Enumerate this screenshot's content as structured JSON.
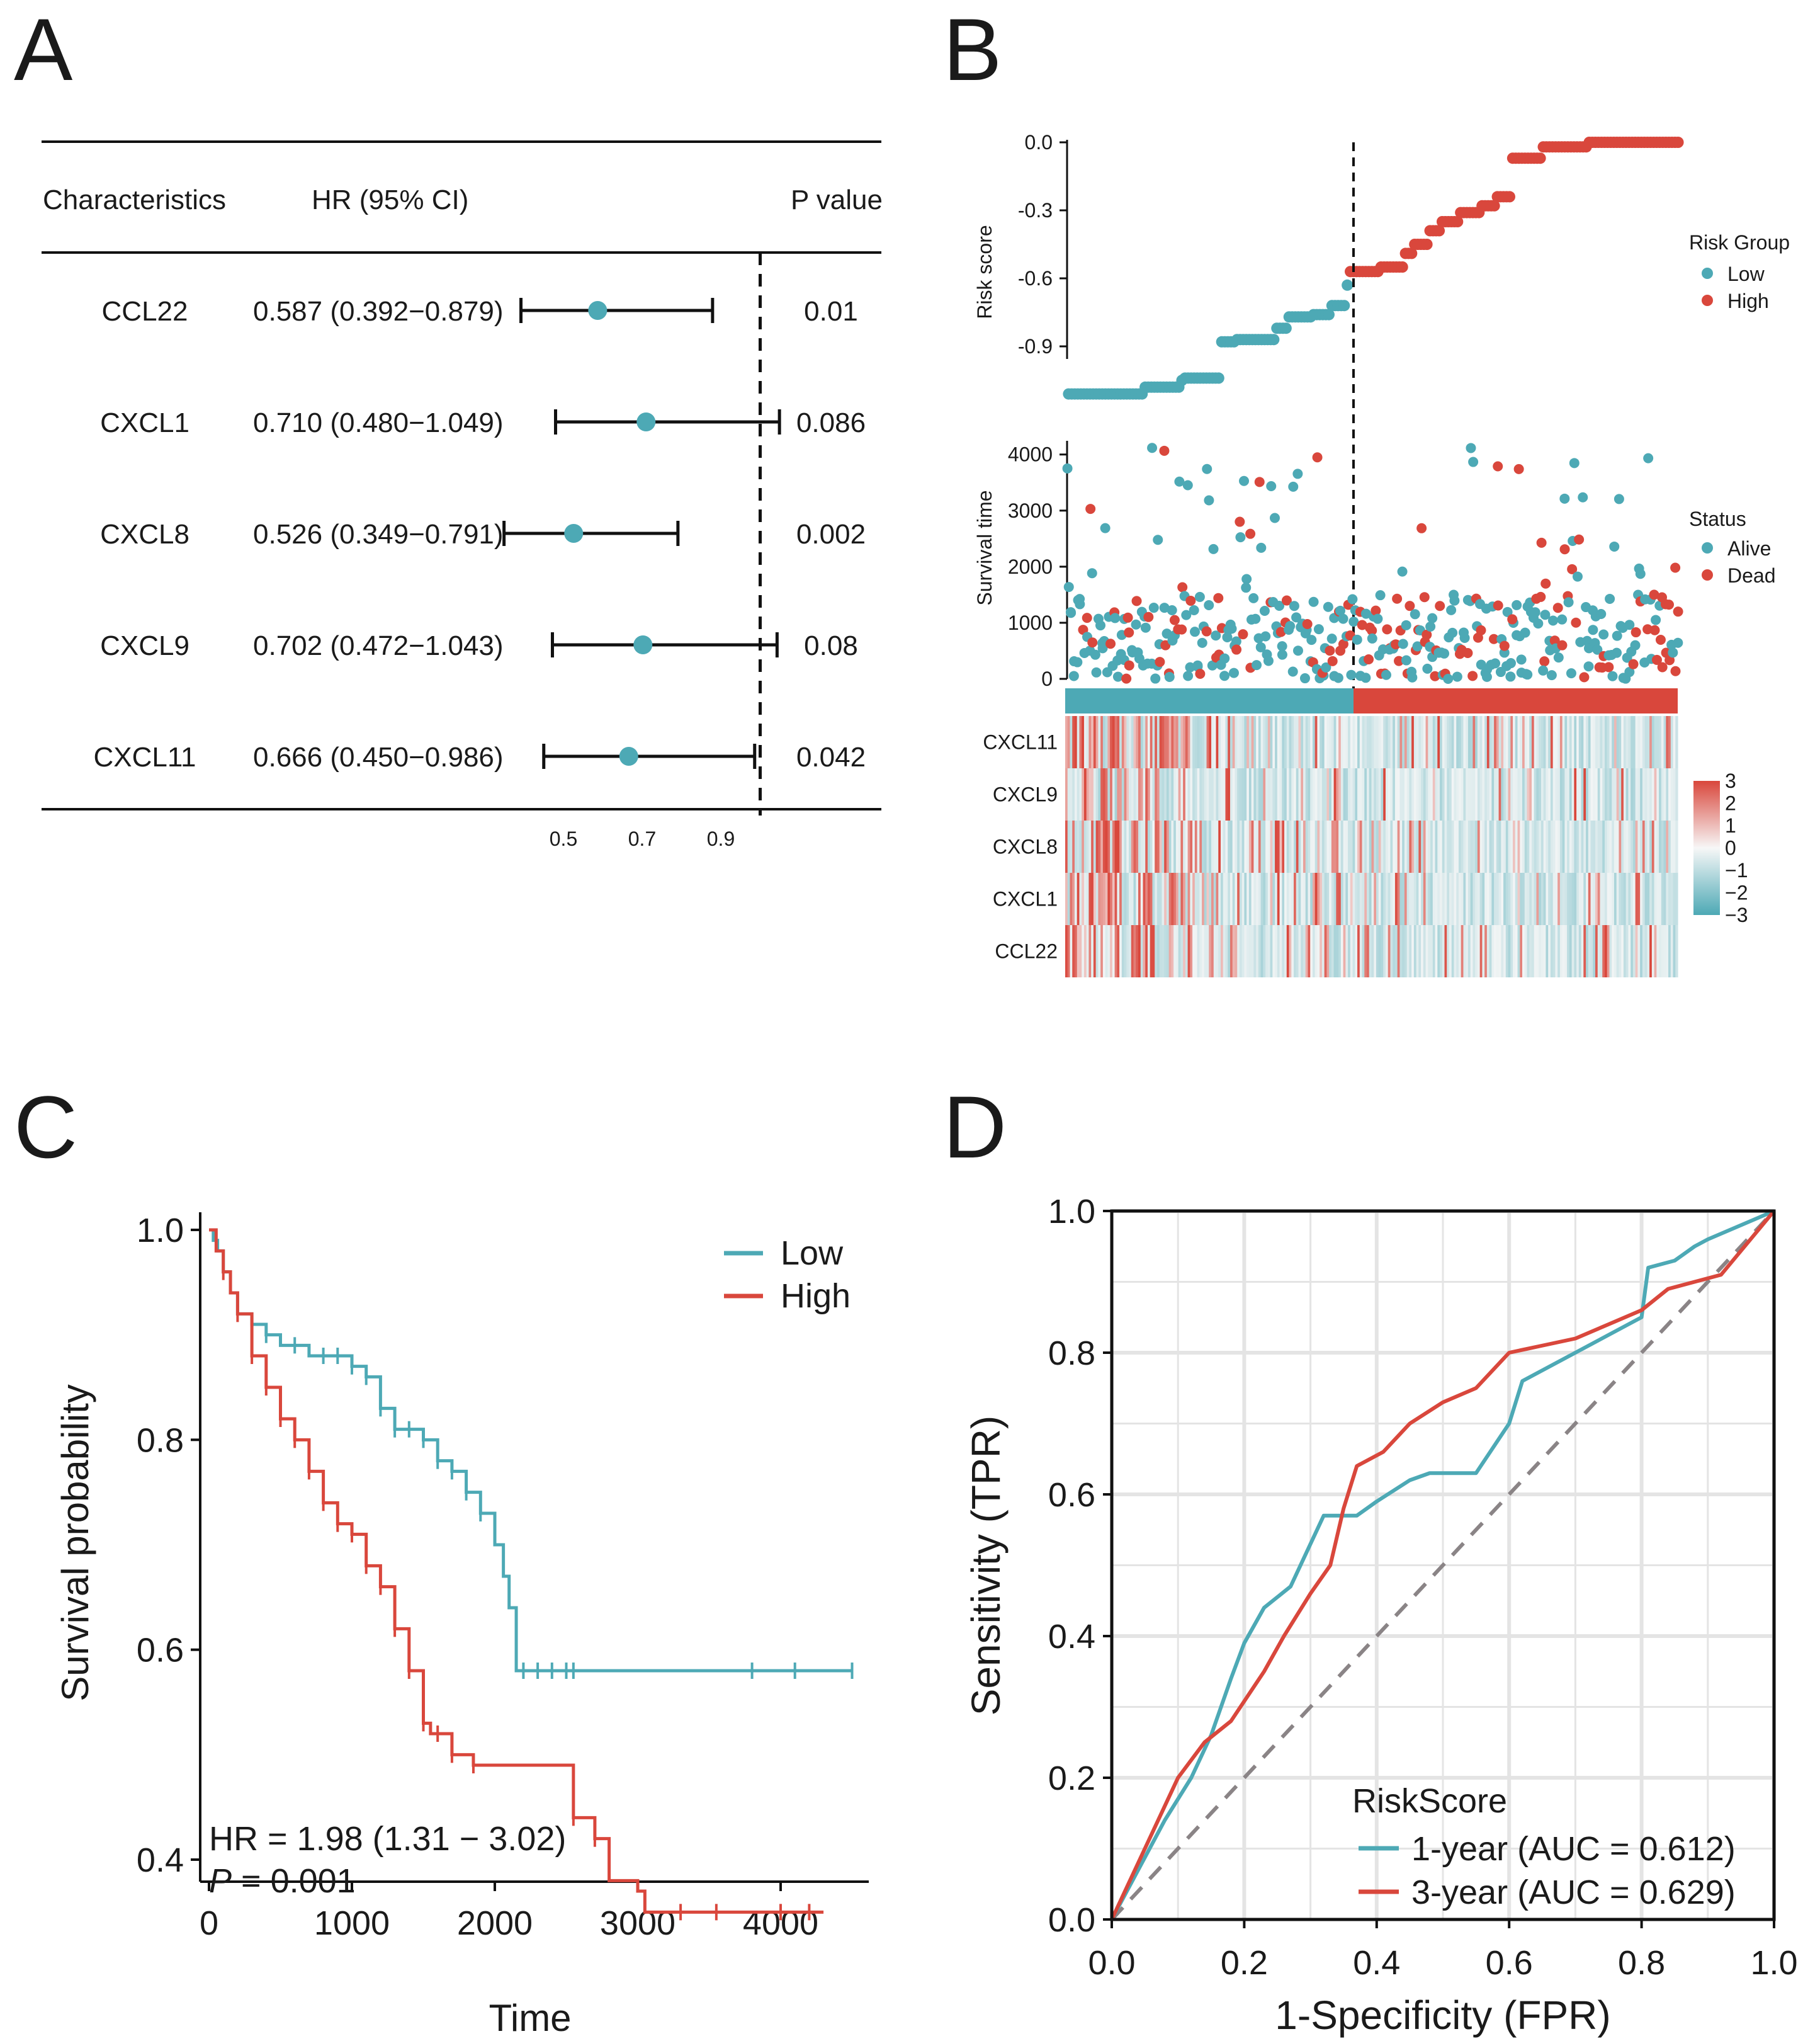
{
  "panels": {
    "a": "A",
    "b": "B",
    "c": "C",
    "d": "D"
  },
  "chart_data": [
    {
      "panel": "A",
      "type": "table",
      "subtype": "forest_plot",
      "headers": {
        "characteristics": "Characteristics",
        "hr": "HR (95% CI)",
        "p": "P value"
      },
      "rows": [
        {
          "name": "CCL22",
          "hr_text": "0.587 (0.392−0.879)",
          "hr": 0.587,
          "lo": 0.392,
          "hi": 0.879,
          "p": "0.01"
        },
        {
          "name": "CXCL1",
          "hr_text": "0.710 (0.480−1.049)",
          "hr": 0.71,
          "lo": 0.48,
          "hi": 1.049,
          "p": "0.086"
        },
        {
          "name": "CXCL8",
          "hr_text": "0.526 (0.349−0.791)",
          "hr": 0.526,
          "lo": 0.349,
          "hi": 0.791,
          "p": "0.002"
        },
        {
          "name": "CXCL9",
          "hr_text": "0.702 (0.472−1.043)",
          "hr": 0.702,
          "lo": 0.472,
          "hi": 1.043,
          "p": "0.08"
        },
        {
          "name": "CXCL11",
          "hr_text": "0.666 (0.450−0.986)",
          "hr": 0.666,
          "lo": 0.45,
          "hi": 0.986,
          "p": "0.042"
        }
      ],
      "axis_ticks": [
        "0.5",
        "0.7",
        "0.9"
      ],
      "tick_values": [
        0.5,
        0.7,
        0.9
      ],
      "xlim": [
        0.3,
        1.1
      ],
      "reference_line": 1.0
    },
    {
      "panel": "B",
      "type": "scatter",
      "subtype": "risk_score_plot",
      "risk": {
        "ylabel": "Risk score",
        "yticks": [
          "0.0",
          "-0.3",
          "-0.6",
          "-0.9"
        ],
        "tick_values": [
          0.0,
          -0.3,
          -0.6,
          -0.9
        ],
        "ylim": [
          -1.15,
          0.0
        ],
        "n_patients": 200,
        "n_low": 92,
        "steps": [
          {
            "from": 0,
            "to": 25,
            "score": -1.11
          },
          {
            "from": 25,
            "to": 37,
            "score": -1.08
          },
          {
            "from": 37,
            "to": 38,
            "score": -1.05
          },
          {
            "from": 38,
            "to": 50,
            "score": -1.04
          },
          {
            "from": 50,
            "to": 55,
            "score": -0.88
          },
          {
            "from": 55,
            "to": 68,
            "score": -0.87
          },
          {
            "from": 68,
            "to": 72,
            "score": -0.82
          },
          {
            "from": 72,
            "to": 80,
            "score": -0.77
          },
          {
            "from": 80,
            "to": 86,
            "score": -0.76
          },
          {
            "from": 86,
            "to": 91,
            "score": -0.72
          },
          {
            "from": 91,
            "to": 92,
            "score": -0.63
          },
          {
            "from": 92,
            "to": 102,
            "score": -0.57
          },
          {
            "from": 102,
            "to": 110,
            "score": -0.55
          },
          {
            "from": 110,
            "to": 113,
            "score": -0.49
          },
          {
            "from": 113,
            "to": 118,
            "score": -0.45
          },
          {
            "from": 118,
            "to": 122,
            "score": -0.39
          },
          {
            "from": 122,
            "to": 128,
            "score": -0.35
          },
          {
            "from": 128,
            "to": 135,
            "score": -0.31
          },
          {
            "from": 135,
            "to": 140,
            "score": -0.28
          },
          {
            "from": 140,
            "to": 145,
            "score": -0.24
          },
          {
            "from": 145,
            "to": 155,
            "score": -0.07
          },
          {
            "from": 155,
            "to": 170,
            "score": -0.02
          },
          {
            "from": 170,
            "to": 200,
            "score": 0.0
          }
        ],
        "legend_title": "Risk Group",
        "groups": [
          "Low",
          "High"
        ]
      },
      "survival": {
        "ylabel": "Survival time",
        "yticks": [
          "4000",
          "3000",
          "2000",
          "1000",
          "0"
        ],
        "tick_values": [
          4000,
          3000,
          2000,
          1000,
          0
        ],
        "ylim": [
          0,
          4300
        ],
        "legend_title": "Status",
        "statuses": [
          "Alive",
          "Dead"
        ]
      },
      "heatmap": {
        "genes": [
          "CXCL11",
          "CXCL9",
          "CXCL8",
          "CXCL1",
          "CCL22"
        ],
        "colorbar_ticks": [
          "3",
          "2",
          "1",
          "0",
          "−1",
          "−2",
          "−3"
        ],
        "colorbar_values": [
          3,
          2,
          1,
          0,
          -1,
          -2,
          -3
        ]
      }
    },
    {
      "panel": "C",
      "type": "line",
      "subtype": "kaplan_meier",
      "xlabel": "Time",
      "ylabel": "Survival probability",
      "xticks": [
        "0",
        "1000",
        "2000",
        "3000",
        "4000"
      ],
      "x_tick_values": [
        0,
        1000,
        2000,
        3000,
        4000
      ],
      "yticks": [
        "1.0",
        "0.8",
        "0.6",
        "0.4"
      ],
      "y_tick_values": [
        1.0,
        0.8,
        0.6,
        0.4
      ],
      "xlim": [
        -50,
        4600
      ],
      "ylim": [
        0.35,
        1.02
      ],
      "legend": [
        "Low",
        "High"
      ],
      "series": [
        {
          "name": "Low",
          "x": [
            0,
            30,
            60,
            100,
            150,
            200,
            300,
            400,
            500,
            700,
            900,
            1000,
            1100,
            1200,
            1300,
            1400,
            1500,
            1600,
            1700,
            1800,
            1900,
            2000,
            2060,
            2100,
            2150,
            2500,
            3500,
            4500
          ],
          "y": [
            1.0,
            0.99,
            0.98,
            0.96,
            0.94,
            0.92,
            0.91,
            0.9,
            0.89,
            0.88,
            0.88,
            0.87,
            0.86,
            0.83,
            0.81,
            0.81,
            0.8,
            0.78,
            0.77,
            0.75,
            0.73,
            0.7,
            0.67,
            0.64,
            0.58,
            0.58,
            0.58,
            0.58
          ],
          "censor_x": [
            400,
            600,
            800,
            900,
            1000,
            1100,
            1200,
            1300,
            1400,
            1500,
            1600,
            1700,
            1800,
            1900,
            2200,
            2300,
            2400,
            2500,
            2550,
            3800,
            4100,
            4500
          ],
          "color": "#4da9b5"
        },
        {
          "name": "High",
          "x": [
            0,
            50,
            100,
            150,
            200,
            300,
            400,
            500,
            600,
            700,
            800,
            900,
            1000,
            1100,
            1200,
            1300,
            1400,
            1500,
            1550,
            1700,
            1850,
            2500,
            2550,
            2700,
            2800,
            3000,
            3050,
            3500,
            4300
          ],
          "y": [
            1.0,
            0.98,
            0.96,
            0.94,
            0.92,
            0.88,
            0.85,
            0.82,
            0.8,
            0.77,
            0.74,
            0.72,
            0.71,
            0.68,
            0.66,
            0.62,
            0.58,
            0.53,
            0.52,
            0.5,
            0.49,
            0.49,
            0.44,
            0.42,
            0.38,
            0.37,
            0.35,
            0.35,
            0.35
          ],
          "censor_x": [
            100,
            200,
            300,
            400,
            500,
            600,
            700,
            800,
            900,
            1000,
            1100,
            1200,
            1300,
            1400,
            1500,
            1600,
            1700,
            1850,
            2550,
            2700,
            3300,
            3550,
            4000,
            4200
          ],
          "color": "#d9473c"
        }
      ],
      "annotations": {
        "hr": "HR = 1.98 (1.31 − 3.02)",
        "p_label": "P",
        "p_value": " = 0.001"
      }
    },
    {
      "panel": "D",
      "type": "line",
      "subtype": "roc",
      "xlabel": "1-Specificity (FPR)",
      "ylabel": "Sensitivity (TPR)",
      "xticks": [
        "0.0",
        "0.2",
        "0.4",
        "0.6",
        "0.8",
        "1.0"
      ],
      "yticks": [
        "0.0",
        "0.2",
        "0.4",
        "0.6",
        "0.8",
        "1.0"
      ],
      "tick_values": [
        0.0,
        0.2,
        0.4,
        0.6,
        0.8,
        1.0
      ],
      "xlim": [
        0,
        1
      ],
      "ylim": [
        0,
        1
      ],
      "legend_title": "RiskScore",
      "series": [
        {
          "name": "1-year (AUC = 0.612)",
          "x": [
            0,
            0.04,
            0.08,
            0.12,
            0.15,
            0.18,
            0.2,
            0.23,
            0.27,
            0.32,
            0.37,
            0.4,
            0.45,
            0.48,
            0.55,
            0.6,
            0.62,
            0.7,
            0.8,
            0.81,
            0.85,
            0.88,
            0.9,
            1.0
          ],
          "y": [
            0,
            0.07,
            0.14,
            0.2,
            0.26,
            0.34,
            0.39,
            0.44,
            0.47,
            0.57,
            0.57,
            0.59,
            0.62,
            0.63,
            0.63,
            0.7,
            0.76,
            0.8,
            0.85,
            0.92,
            0.93,
            0.95,
            0.96,
            1.0
          ],
          "color": "#4da9b5"
        },
        {
          "name": "3-year (AUC = 0.629)",
          "x": [
            0,
            0.05,
            0.1,
            0.14,
            0.18,
            0.23,
            0.26,
            0.3,
            0.33,
            0.35,
            0.37,
            0.41,
            0.45,
            0.5,
            0.55,
            0.6,
            0.65,
            0.7,
            0.75,
            0.8,
            0.84,
            0.88,
            0.92,
            1.0
          ],
          "y": [
            0,
            0.1,
            0.2,
            0.25,
            0.28,
            0.35,
            0.4,
            0.46,
            0.5,
            0.58,
            0.64,
            0.66,
            0.7,
            0.73,
            0.75,
            0.8,
            0.81,
            0.82,
            0.84,
            0.86,
            0.89,
            0.9,
            0.91,
            1.0
          ],
          "color": "#d9473c"
        }
      ]
    }
  ]
}
